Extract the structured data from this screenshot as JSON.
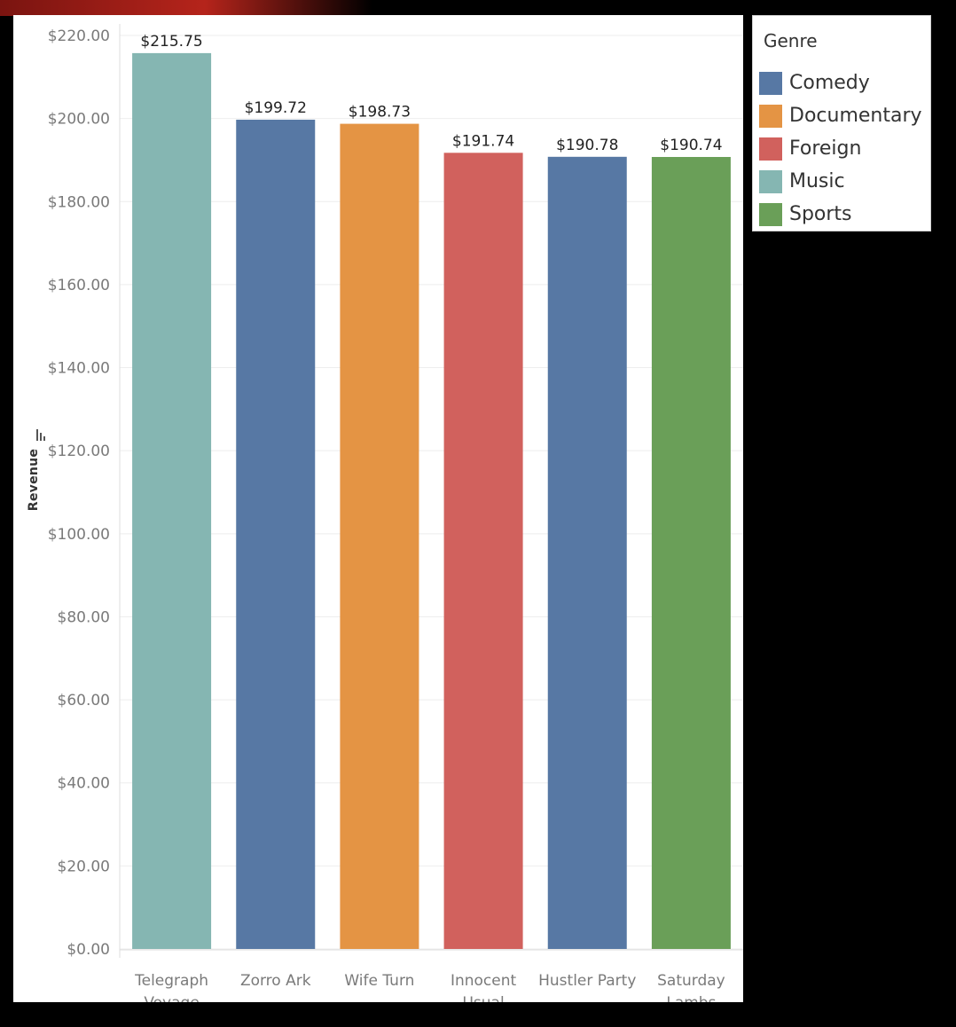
{
  "chart_data": {
    "type": "bar",
    "title": "",
    "xlabel": "",
    "ylabel": "Revenue",
    "ylim": [
      0,
      220
    ],
    "y_ticks": [
      "$0.00",
      "$20.00",
      "$40.00",
      "$60.00",
      "$80.00",
      "$100.00",
      "$120.00",
      "$140.00",
      "$160.00",
      "$180.00",
      "$200.00",
      "$220.00"
    ],
    "y_tick_values": [
      0,
      20,
      40,
      60,
      80,
      100,
      120,
      140,
      160,
      180,
      200,
      220
    ],
    "categories": [
      [
        "Telegraph",
        "Voyage"
      ],
      [
        "Zorro Ark"
      ],
      [
        "Wife Turn"
      ],
      [
        "Innocent",
        "Usual"
      ],
      [
        "Hustler Party"
      ],
      [
        "Saturday",
        "Lambs"
      ]
    ],
    "values": [
      215.75,
      199.72,
      198.73,
      191.74,
      190.78,
      190.74
    ],
    "value_labels": [
      "$215.75",
      "$199.72",
      "$198.73",
      "$191.74",
      "$190.78",
      "$190.74"
    ],
    "bar_genres": [
      "Music",
      "Comedy",
      "Documentary",
      "Foreign",
      "Comedy",
      "Sports"
    ],
    "grid": true,
    "legend": {
      "title": "Genre",
      "placement": "right",
      "items": [
        {
          "label": "Comedy",
          "color": "#5778a4"
        },
        {
          "label": "Documentary",
          "color": "#e49444"
        },
        {
          "label": "Foreign",
          "color": "#d1615d"
        },
        {
          "label": "Music",
          "color": "#85b6b2"
        },
        {
          "label": "Sports",
          "color": "#6a9f58"
        }
      ]
    }
  }
}
